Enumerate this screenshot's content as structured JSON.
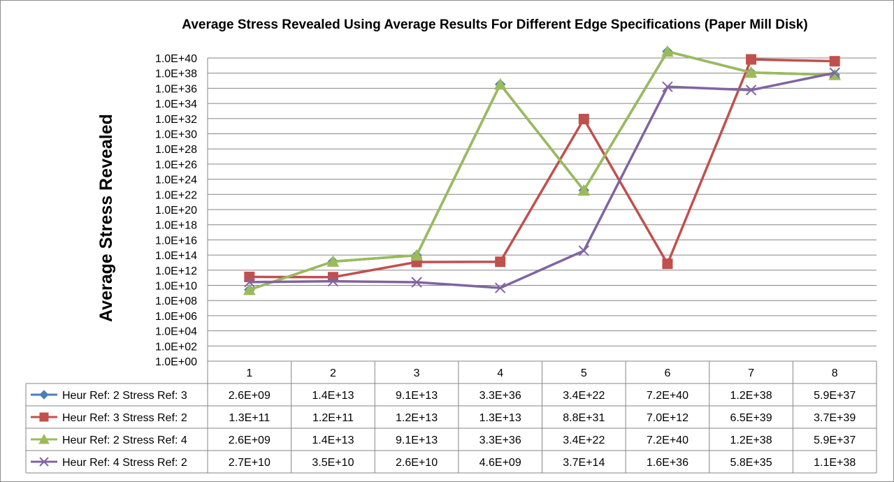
{
  "chart_data": {
    "type": "line",
    "title": "Average Stress Revealed Using Average Results For Different Edge Specifications  (Paper Mill Disk)",
    "xlabel": "",
    "ylabel": "Average Stress Revealed",
    "y_scale": "log",
    "ylim": [
      1.0,
      1e+40
    ],
    "y_tick_labels": [
      "1.0E+00",
      "1.0E+02",
      "1.0E+04",
      "1.0E+06",
      "1.0E+08",
      "1.0E+10",
      "1.0E+12",
      "1.0E+14",
      "1.0E+16",
      "1.0E+18",
      "1.0E+20",
      "1.0E+22",
      "1.0E+24",
      "1.0E+26",
      "1.0E+28",
      "1.0E+30",
      "1.0E+32",
      "1.0E+34",
      "1.0E+36",
      "1.0E+38",
      "1.0E+40"
    ],
    "categories": [
      "1",
      "2",
      "3",
      "4",
      "5",
      "6",
      "7",
      "8"
    ],
    "grid": true,
    "legend_placement": "data-table",
    "series": [
      {
        "name": "Heur Ref: 2 Stress Ref: 3",
        "color": "#4a7ebb",
        "marker": "diamond",
        "values": [
          2600000000.0,
          14000000000000.0,
          91000000000000.0,
          3.3e+36,
          3.4e+22,
          7.2e+40,
          1.2e+38,
          5.9e+37
        ],
        "labels": [
          "2.6E+09",
          "1.4E+13",
          "9.1E+13",
          "3.3E+36",
          "3.4E+22",
          "7.2E+40",
          "1.2E+38",
          "5.9E+37"
        ]
      },
      {
        "name": "Heur Ref: 3 Stress Ref: 2",
        "color": "#c0504d",
        "marker": "square",
        "values": [
          130000000000.0,
          120000000000.0,
          12000000000000.0,
          13000000000000.0,
          8.8e+31,
          7000000000000.0,
          6.5e+39,
          3.7e+39
        ],
        "labels": [
          "1.3E+11",
          "1.2E+11",
          "1.2E+13",
          "1.3E+13",
          "8.8E+31",
          "7.0E+12",
          "6.5E+39",
          "3.7E+39"
        ]
      },
      {
        "name": "Heur Ref: 2 Stress Ref: 4",
        "color": "#9bbb59",
        "marker": "triangle",
        "values": [
          2600000000.0,
          14000000000000.0,
          91000000000000.0,
          3.3e+36,
          3.4e+22,
          7.2e+40,
          1.2e+38,
          5.9e+37
        ],
        "labels": [
          "2.6E+09",
          "1.4E+13",
          "9.1E+13",
          "3.3E+36",
          "3.4E+22",
          "7.2E+40",
          "1.2E+38",
          "5.9E+37"
        ]
      },
      {
        "name": "Heur Ref: 4 Stress Ref: 2",
        "color": "#8064a2",
        "marker": "x",
        "values": [
          27000000000.0,
          35000000000.0,
          26000000000.0,
          4600000000.0,
          370000000000000.0,
          1.6e+36,
          5.8e+35,
          1.1e+38
        ],
        "labels": [
          "2.7E+10",
          "3.5E+10",
          "2.6E+10",
          "4.6E+09",
          "3.7E+14",
          "1.6E+36",
          "5.8E+35",
          "1.1E+38"
        ]
      }
    ]
  }
}
